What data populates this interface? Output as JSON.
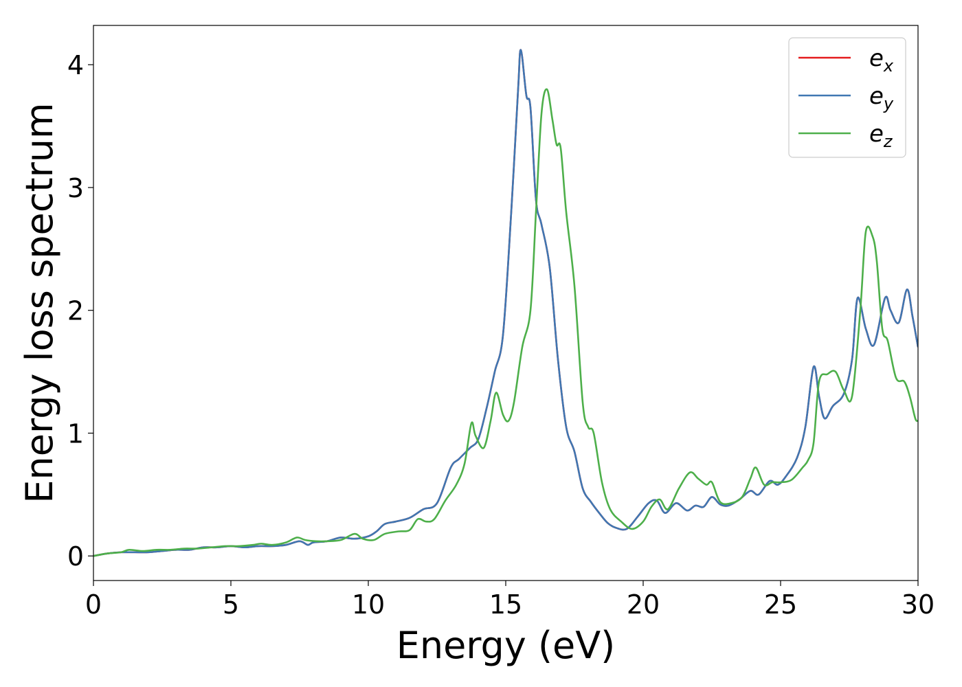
{
  "chart_data": {
    "type": "line",
    "xlabel": "Energy (eV)",
    "ylabel": "Energy loss spectrum",
    "xlim": [
      0,
      30
    ],
    "ylim": [
      -0.2,
      4.32
    ],
    "xticks": [
      0,
      5,
      10,
      15,
      20,
      25,
      30
    ],
    "yticks": [
      0,
      1,
      2,
      3,
      4
    ],
    "grid": false,
    "legend_position": "upper-right",
    "series": [
      {
        "name": "e_x",
        "legend_main": "e",
        "legend_sub": "x",
        "color": "#e41a1c",
        "x": [
          0,
          0.5,
          1,
          1.5,
          2,
          2.5,
          3,
          3.5,
          4,
          4.5,
          5,
          5.5,
          6,
          6.5,
          7,
          7.5,
          7.8,
          8,
          8.5,
          9,
          9.5,
          10,
          10.3,
          10.6,
          11,
          11.5,
          12,
          12.5,
          13,
          13.3,
          13.7,
          14,
          14.3,
          14.6,
          14.9,
          15.2,
          15.45,
          15.55,
          15.75,
          15.9,
          16.1,
          16.3,
          16.6,
          16.9,
          17.2,
          17.5,
          17.8,
          18.1,
          18.4,
          18.7,
          19,
          19.4,
          19.8,
          20.2,
          20.5,
          20.8,
          21.2,
          21.6,
          21.9,
          22.2,
          22.5,
          22.8,
          23.1,
          23.5,
          23.9,
          24.2,
          24.6,
          24.9,
          25.2,
          25.6,
          25.9,
          26.2,
          26.4,
          26.6,
          26.9,
          27.3,
          27.6,
          27.8,
          28.1,
          28.4,
          28.8,
          29.0,
          29.3,
          29.6,
          29.8,
          30.0
        ],
        "y": [
          0.0,
          0.02,
          0.03,
          0.03,
          0.03,
          0.04,
          0.05,
          0.05,
          0.07,
          0.07,
          0.08,
          0.07,
          0.08,
          0.08,
          0.09,
          0.12,
          0.09,
          0.11,
          0.12,
          0.15,
          0.14,
          0.16,
          0.2,
          0.26,
          0.28,
          0.31,
          0.38,
          0.43,
          0.72,
          0.79,
          0.88,
          0.95,
          1.2,
          1.5,
          1.8,
          2.8,
          3.8,
          4.12,
          3.75,
          3.65,
          2.9,
          2.7,
          2.35,
          1.6,
          1.05,
          0.85,
          0.55,
          0.44,
          0.35,
          0.27,
          0.23,
          0.22,
          0.32,
          0.43,
          0.45,
          0.35,
          0.43,
          0.37,
          0.41,
          0.4,
          0.48,
          0.42,
          0.41,
          0.46,
          0.53,
          0.5,
          0.61,
          0.58,
          0.65,
          0.8,
          1.05,
          1.54,
          1.3,
          1.12,
          1.22,
          1.32,
          1.6,
          2.1,
          1.85,
          1.72,
          2.1,
          2.0,
          1.9,
          2.17,
          1.95,
          1.7
        ]
      },
      {
        "name": "e_y",
        "legend_main": "e",
        "legend_sub": "y",
        "color": "#3f77b2",
        "x": [
          0,
          0.5,
          1,
          1.5,
          2,
          2.5,
          3,
          3.5,
          4,
          4.5,
          5,
          5.5,
          6,
          6.5,
          7,
          7.5,
          7.8,
          8,
          8.5,
          9,
          9.5,
          10,
          10.3,
          10.6,
          11,
          11.5,
          12,
          12.5,
          13,
          13.3,
          13.7,
          14,
          14.3,
          14.6,
          14.9,
          15.2,
          15.45,
          15.55,
          15.75,
          15.9,
          16.1,
          16.3,
          16.6,
          16.9,
          17.2,
          17.5,
          17.8,
          18.1,
          18.4,
          18.7,
          19,
          19.4,
          19.8,
          20.2,
          20.5,
          20.8,
          21.2,
          21.6,
          21.9,
          22.2,
          22.5,
          22.8,
          23.1,
          23.5,
          23.9,
          24.2,
          24.6,
          24.9,
          25.2,
          25.6,
          25.9,
          26.2,
          26.4,
          26.6,
          26.9,
          27.3,
          27.6,
          27.8,
          28.1,
          28.4,
          28.8,
          29.0,
          29.3,
          29.6,
          29.8,
          30.0
        ],
        "y": [
          0.0,
          0.02,
          0.03,
          0.03,
          0.03,
          0.04,
          0.05,
          0.05,
          0.07,
          0.07,
          0.08,
          0.07,
          0.08,
          0.08,
          0.09,
          0.12,
          0.09,
          0.11,
          0.12,
          0.15,
          0.14,
          0.16,
          0.2,
          0.26,
          0.28,
          0.31,
          0.38,
          0.43,
          0.72,
          0.79,
          0.88,
          0.95,
          1.2,
          1.5,
          1.8,
          2.8,
          3.8,
          4.12,
          3.75,
          3.65,
          2.9,
          2.7,
          2.35,
          1.6,
          1.05,
          0.85,
          0.55,
          0.44,
          0.35,
          0.27,
          0.23,
          0.22,
          0.32,
          0.43,
          0.45,
          0.35,
          0.43,
          0.37,
          0.41,
          0.4,
          0.48,
          0.42,
          0.41,
          0.46,
          0.53,
          0.5,
          0.61,
          0.58,
          0.65,
          0.8,
          1.05,
          1.54,
          1.3,
          1.12,
          1.22,
          1.32,
          1.6,
          2.1,
          1.85,
          1.72,
          2.1,
          2.0,
          1.9,
          2.17,
          1.95,
          1.7
        ]
      },
      {
        "name": "e_z",
        "legend_main": "e",
        "legend_sub": "z",
        "color": "#4daf4a",
        "x": [
          0,
          0.5,
          1,
          1.3,
          1.8,
          2.3,
          2.8,
          3.3,
          3.8,
          4.3,
          4.8,
          5.3,
          5.8,
          6.1,
          6.5,
          7.0,
          7.4,
          7.7,
          8.1,
          8.5,
          9.0,
          9.5,
          9.8,
          10.2,
          10.6,
          11.1,
          11.5,
          11.8,
          12.1,
          12.4,
          12.8,
          13.2,
          13.5,
          13.75,
          13.9,
          14.2,
          14.45,
          14.65,
          14.9,
          15.1,
          15.3,
          15.6,
          15.9,
          16.1,
          16.3,
          16.5,
          16.7,
          16.85,
          17.0,
          17.2,
          17.5,
          17.8,
          18.0,
          18.2,
          18.5,
          18.8,
          19.2,
          19.6,
          20.0,
          20.3,
          20.6,
          20.9,
          21.3,
          21.7,
          22.0,
          22.3,
          22.5,
          22.8,
          23.2,
          23.6,
          23.9,
          24.1,
          24.4,
          24.7,
          25.0,
          25.4,
          25.8,
          26.0,
          26.2,
          26.4,
          26.7,
          27.0,
          27.3,
          27.6,
          27.9,
          28.1,
          28.35,
          28.5,
          28.7,
          28.9,
          29.2,
          29.5,
          29.7,
          29.9,
          30.0
        ],
        "y": [
          0.0,
          0.02,
          0.03,
          0.05,
          0.04,
          0.05,
          0.05,
          0.06,
          0.06,
          0.07,
          0.08,
          0.08,
          0.09,
          0.1,
          0.09,
          0.11,
          0.15,
          0.13,
          0.12,
          0.12,
          0.13,
          0.18,
          0.14,
          0.13,
          0.18,
          0.2,
          0.21,
          0.3,
          0.28,
          0.3,
          0.45,
          0.58,
          0.75,
          1.08,
          0.98,
          0.88,
          1.1,
          1.33,
          1.15,
          1.1,
          1.25,
          1.7,
          2.0,
          2.8,
          3.6,
          3.8,
          3.55,
          3.35,
          3.32,
          2.8,
          2.2,
          1.25,
          1.05,
          1.0,
          0.6,
          0.38,
          0.28,
          0.22,
          0.28,
          0.4,
          0.46,
          0.38,
          0.55,
          0.68,
          0.63,
          0.58,
          0.6,
          0.44,
          0.43,
          0.48,
          0.63,
          0.72,
          0.58,
          0.6,
          0.6,
          0.62,
          0.72,
          0.78,
          0.92,
          1.42,
          1.48,
          1.5,
          1.35,
          1.3,
          2.0,
          2.64,
          2.6,
          2.4,
          1.85,
          1.75,
          1.45,
          1.42,
          1.3,
          1.12,
          1.1
        ]
      }
    ]
  }
}
